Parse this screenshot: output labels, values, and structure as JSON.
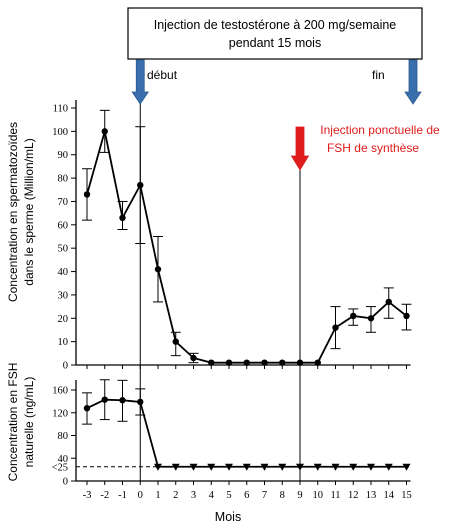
{
  "banner": {
    "line1": "Injection de testostérone à 200 mg/semaine",
    "line2": "pendant 15 mois"
  },
  "markers": {
    "start_label": "début",
    "end_label": "fin",
    "fsh_line1": "Injection ponctuelle de",
    "fsh_line2": "FSH de synthèse",
    "fsh_color": "#e01b1b",
    "arrow_color": "#3a6fae"
  },
  "chart_data": [
    {
      "type": "line",
      "panel": "top",
      "ylabel_line1": "Concentration en spermatozoïdes",
      "ylabel_line2": "dans le sperme (Million/mL)",
      "ylim": [
        0,
        110
      ],
      "yticks": [
        0,
        10,
        20,
        30,
        40,
        50,
        60,
        70,
        80,
        90,
        100,
        110
      ],
      "series": [
        {
          "x": [
            -3,
            -2,
            -1,
            0,
            1,
            2,
            3,
            4,
            5,
            6,
            7,
            8,
            9,
            10,
            11,
            12,
            13,
            14,
            15
          ],
          "y": [
            73,
            100,
            63,
            77,
            41,
            10,
            3,
            1,
            1,
            1,
            1,
            1,
            1,
            1,
            16,
            21,
            20,
            27,
            21
          ],
          "err_high": [
            84,
            109,
            70,
            102,
            55,
            14,
            5,
            null,
            null,
            null,
            null,
            null,
            null,
            null,
            25,
            24,
            25,
            33,
            26
          ],
          "err_low": [
            62,
            91,
            58,
            52,
            27,
            4,
            1,
            null,
            null,
            null,
            null,
            null,
            null,
            null,
            7,
            17,
            14,
            20,
            15
          ]
        }
      ]
    },
    {
      "type": "line",
      "panel": "bottom",
      "ylabel_line1": "Concentration en FSH",
      "ylabel_line2": "naturelle (ng/mL)",
      "ylim": [
        0,
        180
      ],
      "yticks": [
        0,
        40,
        80,
        120,
        160
      ],
      "extra_tick_label": "<25",
      "threshold": 25,
      "xlabel": "Mois",
      "xticks": [
        -3,
        -2,
        -1,
        0,
        1,
        2,
        3,
        4,
        5,
        6,
        7,
        8,
        9,
        10,
        11,
        12,
        13,
        14,
        15
      ],
      "series": [
        {
          "x": [
            -3,
            -2,
            -1,
            0
          ],
          "y": [
            128,
            143,
            142,
            139
          ],
          "err_high": [
            155,
            178,
            177,
            162
          ],
          "err_low": [
            100,
            108,
            105,
            116
          ],
          "marker": "circle"
        },
        {
          "x": [
            1,
            2,
            3,
            4,
            5,
            6,
            7,
            8,
            9,
            10,
            11,
            12,
            13,
            14,
            15
          ],
          "y": [
            25,
            25,
            25,
            25,
            25,
            25,
            25,
            25,
            25,
            25,
            25,
            25,
            25,
            25,
            25
          ],
          "marker": "triangle-down"
        }
      ]
    }
  ]
}
